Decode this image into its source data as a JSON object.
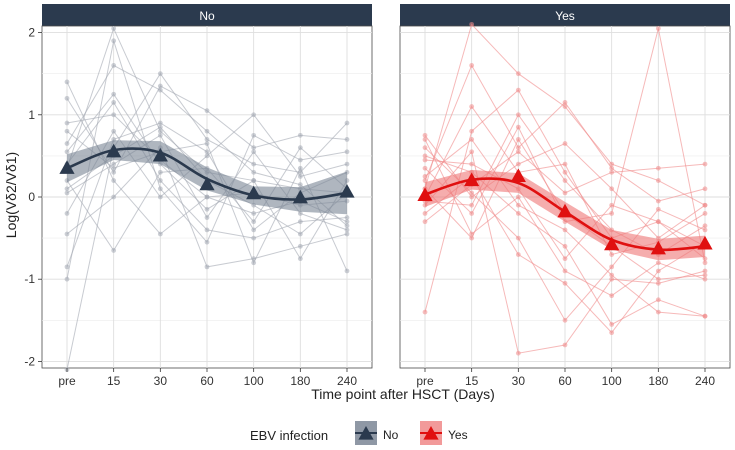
{
  "chart_data": {
    "type": "line",
    "xlabel": "Time point after HSCT (Days)",
    "ylabel": "Log(Vδ2/Vδ1)",
    "categories": [
      "pre",
      "15",
      "30",
      "60",
      "100",
      "180",
      "240"
    ],
    "yticks": [
      -2,
      -1,
      0,
      1,
      2
    ],
    "ylim": [
      -2.08,
      2.08
    ],
    "legend": {
      "title": "EBV infection",
      "position": "bottom",
      "entries": [
        {
          "label": "No",
          "color": "#2b3a4e"
        },
        {
          "label": "Yes",
          "color": "#e01010"
        }
      ]
    },
    "grid": true,
    "panels": [
      {
        "name": "No",
        "color": "#2b3a4e",
        "individual_color": "#a3a8b2",
        "ribbon_color": "#7a8595",
        "mean": [
          0.35,
          0.55,
          0.5,
          0.15,
          0.04,
          -0.01,
          0.06
        ],
        "smooth": [
          0.35,
          0.57,
          0.54,
          0.22,
          0.02,
          -0.03,
          0.05
        ],
        "ribbon_lower": [
          0.18,
          0.45,
          0.4,
          0.08,
          -0.09,
          -0.18,
          -0.21
        ],
        "ribbon_upper": [
          0.52,
          0.69,
          0.68,
          0.36,
          0.13,
          0.12,
          0.31
        ],
        "individuals": [
          [
            0.35,
            2.05,
            0.8,
            0.3,
            0.2,
            0.1,
            0.05
          ],
          [
            -2.1,
            0.6,
            1.5,
            0.7,
            0.4,
            0.3,
            0.9
          ],
          [
            0.9,
            1.0,
            0.45,
            0.0,
            -0.2,
            -0.05,
            -0.3
          ],
          [
            1.2,
            0.3,
            1.35,
            1.05,
            0.6,
            0.75,
            0.7
          ],
          [
            0.4,
            1.15,
            0.2,
            -0.4,
            -0.5,
            -0.3,
            -0.25
          ],
          [
            -0.2,
            0.8,
            0.0,
            0.5,
            1.0,
            0.25,
            0.4
          ],
          [
            0.1,
            0.5,
            0.85,
            0.2,
            -0.1,
            -0.45,
            0.05
          ],
          [
            0.65,
            1.6,
            1.3,
            0.8,
            0.3,
            0.15,
            -0.35
          ],
          [
            -0.45,
            0.0,
            0.6,
            -0.85,
            -0.75,
            -0.6,
            -0.45
          ],
          [
            1.4,
            0.2,
            -0.45,
            0.0,
            0.05,
            -0.1,
            -0.05
          ],
          [
            0.2,
            -0.65,
            0.3,
            0.35,
            -0.3,
            0.6,
            0.1
          ],
          [
            0.05,
            0.4,
            0.75,
            -0.25,
            0.55,
            -0.2,
            -0.4
          ],
          [
            -1.0,
            1.9,
            0.1,
            -0.55,
            0.75,
            0.45,
            0.55
          ],
          [
            0.8,
            0.35,
            0.55,
            0.65,
            -0.8,
            0.35,
            -0.9
          ],
          [
            0.55,
            1.25,
            0.4,
            -0.15,
            0.2,
            -0.75,
            0.2
          ],
          [
            -0.85,
            0.7,
            0.9,
            0.55,
            -0.4,
            0.05,
            0.3
          ]
        ]
      },
      {
        "name": "Yes",
        "color": "#e01010",
        "individual_color": "#f08b8b",
        "ribbon_color": "#ee7676",
        "mean": [
          0.02,
          0.2,
          0.25,
          -0.18,
          -0.58,
          -0.63,
          -0.57
        ],
        "smooth": [
          0.03,
          0.21,
          0.17,
          -0.18,
          -0.52,
          -0.64,
          -0.6
        ],
        "ribbon_lower": [
          -0.12,
          0.09,
          0.05,
          -0.3,
          -0.64,
          -0.77,
          -0.73
        ],
        "ribbon_upper": [
          0.18,
          0.33,
          0.29,
          -0.06,
          -0.4,
          -0.51,
          -0.47
        ],
        "individuals": [
          [
            0.1,
            2.1,
            1.5,
            1.1,
            0.4,
            0.2,
            -0.1
          ],
          [
            0.7,
            -0.45,
            0.0,
            -0.9,
            -1.2,
            -0.8,
            -1.0
          ],
          [
            -1.4,
            0.8,
            1.3,
            0.3,
            -0.5,
            -0.3,
            -0.6
          ],
          [
            0.5,
            0.3,
            -0.2,
            -0.6,
            -1.55,
            -1.25,
            -1.45
          ],
          [
            0.2,
            1.6,
            0.6,
            1.15,
            0.35,
            -0.05,
            0.1
          ],
          [
            0.35,
            -0.2,
            0.85,
            -0.3,
            -0.2,
            2.05,
            -0.8
          ],
          [
            -0.1,
            0.55,
            -1.9,
            -1.8,
            -1.0,
            -1.05,
            -0.9
          ],
          [
            0.0,
            1.1,
            0.3,
            0.4,
            -0.7,
            -0.55,
            -0.2
          ],
          [
            0.6,
            0.05,
            -0.5,
            -1.5,
            -0.85,
            -0.15,
            -0.4
          ],
          [
            -0.3,
            0.15,
            0.55,
            0.05,
            0.3,
            0.35,
            0.4
          ],
          [
            0.25,
            0.7,
            -0.1,
            -0.4,
            -0.95,
            -1.4,
            -1.45
          ],
          [
            -0.05,
            -0.1,
            1.0,
            0.2,
            -0.4,
            -0.7,
            -0.35
          ],
          [
            0.45,
            0.4,
            0.1,
            -0.75,
            -0.1,
            -0.3,
            -0.75
          ],
          [
            -0.2,
            0.25,
            -0.7,
            -1.05,
            -1.65,
            -0.9,
            -0.55
          ],
          [
            0.75,
            0.0,
            0.4,
            0.65,
            0.1,
            -0.5,
            -0.1
          ],
          [
            0.1,
            -0.5,
            0.7,
            -0.2,
            -0.6,
            -1.0,
            -0.95
          ]
        ]
      }
    ]
  }
}
